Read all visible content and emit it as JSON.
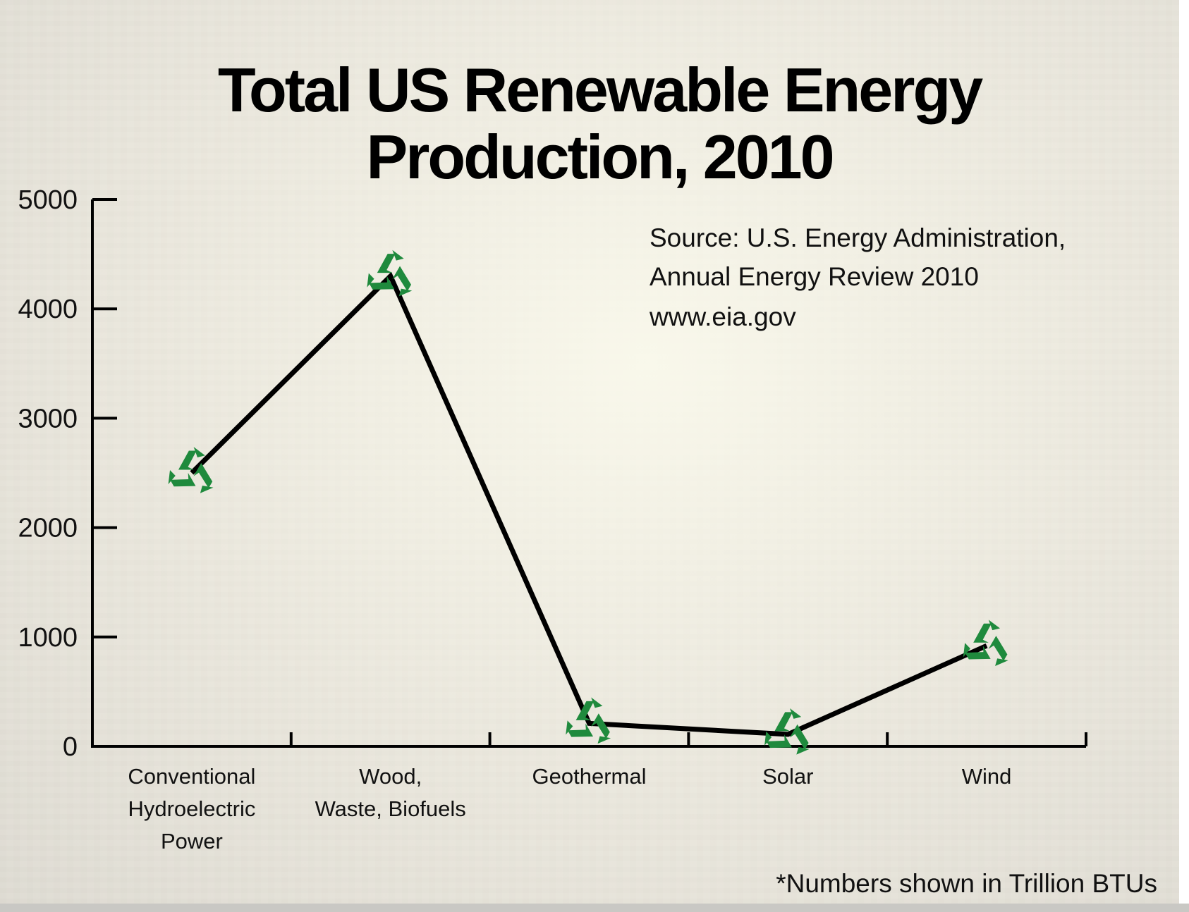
{
  "title": {
    "line1": "Total US Renewable Energy",
    "line2": "Production, 2010"
  },
  "source": {
    "line1": "Source: U.S. Energy Administration,",
    "line2": "Annual Energy Review 2010",
    "line3": "www.eia.gov"
  },
  "footnote": "*Numbers shown in Trillion BTUs",
  "chart_data": {
    "type": "line",
    "categories": [
      [
        "Conventional",
        "Hydroelectric",
        "Power"
      ],
      [
        "Wood,",
        "Waste, Biofuels"
      ],
      [
        "Geothermal"
      ],
      [
        "Solar"
      ],
      [
        "Wind"
      ]
    ],
    "values": [
      2500,
      4300,
      210,
      110,
      920
    ],
    "ylim": [
      0,
      5000
    ],
    "yticks": [
      "0",
      "1000",
      "2000",
      "3000",
      "4000",
      "5000"
    ],
    "marker": "recycle-symbol",
    "colors": {
      "line": "#000000",
      "marker": "#1f8a3d"
    }
  }
}
